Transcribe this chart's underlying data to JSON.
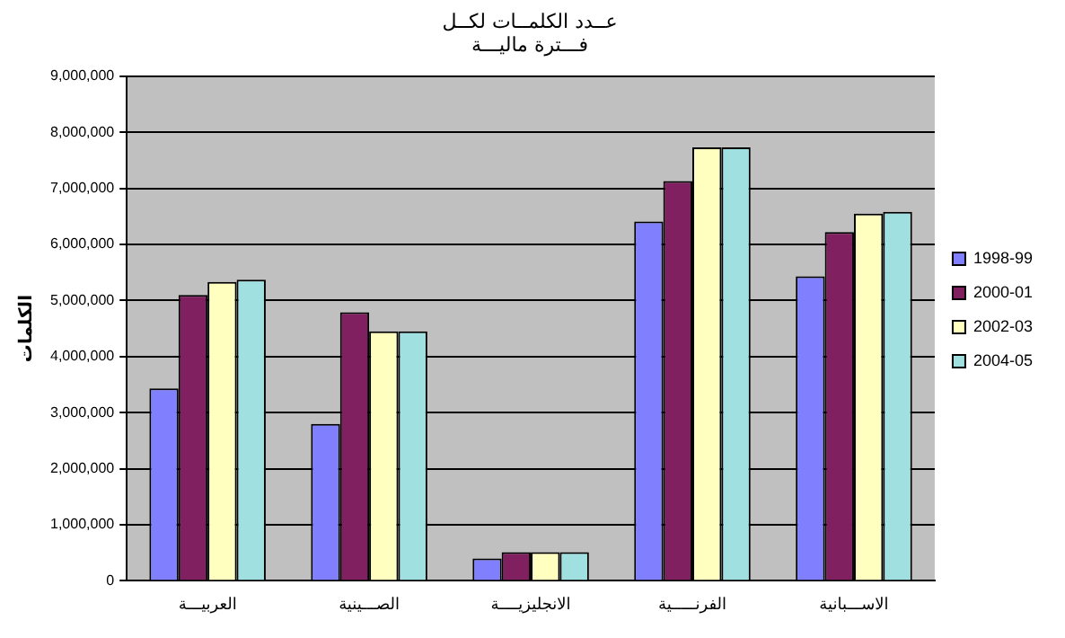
{
  "chart_data": {
    "type": "bar",
    "title": "عــدد الكلمــات لكــل\nفـــترة ماليـــة",
    "ylabel": "الكلمات",
    "categories": [
      "العربيـــة",
      "الصـــينية",
      "الانجليزيــــة",
      "الفرنـــــية",
      "الاســـبانية"
    ],
    "series": [
      {
        "name": "1998-99",
        "color": "#8080ff",
        "values": [
          3430000,
          2800000,
          400000,
          6410000,
          5430000
        ]
      },
      {
        "name": "2000-01",
        "color": "#802060",
        "values": [
          5100000,
          4790000,
          510000,
          7130000,
          6220000
        ]
      },
      {
        "name": "2002-03",
        "color": "#ffffc0",
        "values": [
          5330000,
          4450000,
          510000,
          7730000,
          6550000
        ]
      },
      {
        "name": "2004-05",
        "color": "#a0e0e0",
        "values": [
          5370000,
          4450000,
          510000,
          7730000,
          6580000
        ]
      }
    ],
    "ylim": [
      0,
      9000000
    ],
    "yticks": [
      0,
      {
        "value": 1000000,
        "label": "1,000,000"
      },
      {
        "value": 2000000,
        "label": "2,000,000"
      },
      {
        "value": 3000000,
        "label": "3,000,000"
      },
      {
        "value": 4000000,
        "label": "4,000,000"
      },
      {
        "value": 5000000,
        "label": "5,000,000"
      },
      {
        "value": 6000000,
        "label": "6,000,000"
      },
      {
        "value": 7000000,
        "label": "7,000,000"
      },
      {
        "value": 8000000,
        "label": "8,000,000"
      },
      {
        "value": 9000000,
        "label": "9,000,000"
      }
    ],
    "grid": "y",
    "legend": "right"
  }
}
